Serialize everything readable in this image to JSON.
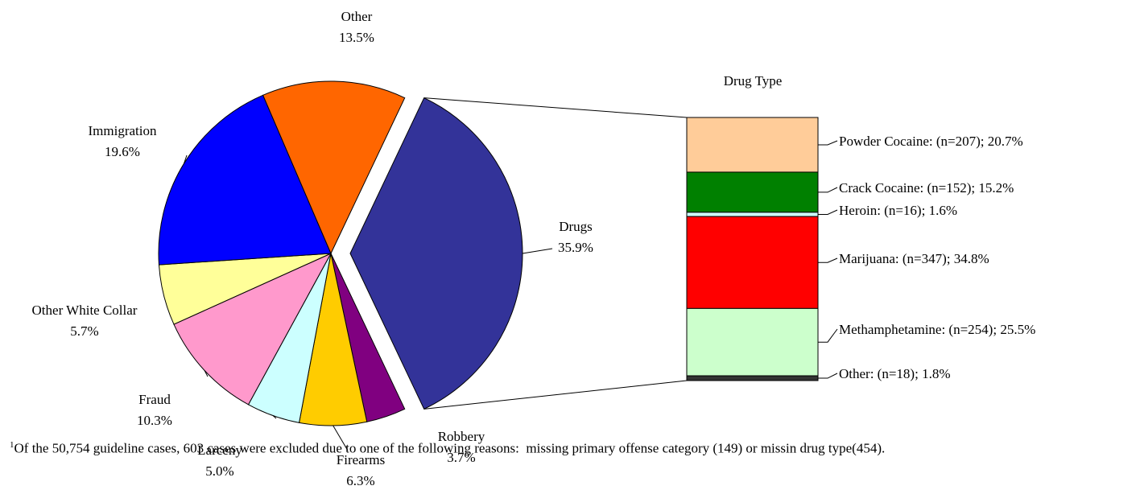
{
  "chart_data": [
    {
      "type": "pie",
      "slices": [
        {
          "label": "Drugs",
          "value": 35.9,
          "value_label": "35.9%",
          "color": "#333399"
        },
        {
          "label": "Robbery",
          "value": 3.7,
          "value_label": "3.7%",
          "color": "#800080"
        },
        {
          "label": "Firearms",
          "value": 6.3,
          "value_label": "6.3%",
          "color": "#FFCC00"
        },
        {
          "label": "Larceny",
          "value": 5.0,
          "value_label": "5.0%",
          "color": "#CCFFFF"
        },
        {
          "label": "Fraud",
          "value": 10.3,
          "value_label": "10.3%",
          "color": "#FF99CC"
        },
        {
          "label": "Other White Collar",
          "value": 5.7,
          "value_label": "5.7%",
          "color": "#FFFF99"
        },
        {
          "label": "Immigration",
          "value": 19.6,
          "value_label": "19.6%",
          "color": "#0000FF"
        },
        {
          "label": "Other",
          "value": 13.5,
          "value_label": "13.5%",
          "color": "#FF6600"
        }
      ],
      "exploded": "Drugs"
    },
    {
      "type": "bar",
      "stacked": true,
      "title": "Drug Type",
      "segments": [
        {
          "label": "Powder Cocaine: (n=207); 20.7%",
          "value": 20.7,
          "color": "#FFCC99"
        },
        {
          "label": "Crack Cocaine: (n=152); 15.2%",
          "value": 15.2,
          "color": "#008000"
        },
        {
          "label": "Heroin: (n=16); 1.6%",
          "value": 1.6,
          "color": "#CCFFFF"
        },
        {
          "label": "Marijuana: (n=347); 34.8%",
          "value": 34.8,
          "color": "#FF0000"
        },
        {
          "label": "Methamphetamine: (n=254); 25.5%",
          "value": 25.5,
          "color": "#CCFFCC"
        },
        {
          "label": "Other: (n=18); 1.8%",
          "value": 1.8,
          "color": "#333333"
        }
      ]
    }
  ],
  "footnote": {
    "marker": "1",
    "text": "Of the 50,754 guideline cases, 603 cases were excluded due to one of the following reasons:  missing primary offense category (149) or missin drug type(454)."
  }
}
